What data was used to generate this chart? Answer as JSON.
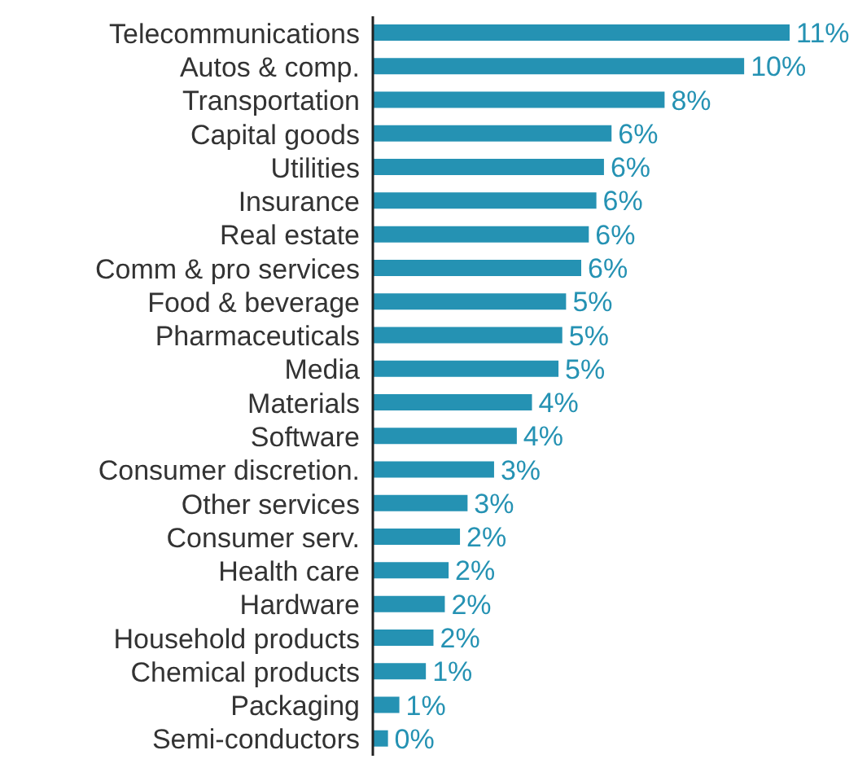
{
  "chart_data": {
    "type": "bar",
    "orientation": "horizontal",
    "categories": [
      "Telecommunications",
      "Autos & comp.",
      "Transportation",
      "Capital goods",
      "Utilities",
      "Insurance",
      "Real estate",
      "Comm & pro services",
      "Food & beverage",
      "Pharmaceuticals",
      "Media",
      "Materials",
      "Software",
      "Consumer discretion.",
      "Other services",
      "Consumer serv.",
      "Health care",
      "Hardware",
      "Household products",
      "Chemical products",
      "Packaging",
      "Semi-conductors"
    ],
    "values": [
      11.0,
      9.8,
      7.7,
      6.3,
      6.1,
      5.9,
      5.7,
      5.5,
      5.1,
      5.0,
      4.9,
      4.2,
      3.8,
      3.2,
      2.5,
      2.3,
      2.0,
      1.9,
      1.6,
      1.4,
      0.7,
      0.4
    ],
    "value_labels": [
      "11%",
      "10%",
      "8%",
      "6%",
      "6%",
      "6%",
      "6%",
      "6%",
      "5%",
      "5%",
      "5%",
      "4%",
      "4%",
      "3%",
      "3%",
      "2%",
      "2%",
      "2%",
      "2%",
      "1%",
      "1%",
      "0%"
    ],
    "color": "#2592b3",
    "tick_labels": "y",
    "grid": false,
    "legend": false
  }
}
